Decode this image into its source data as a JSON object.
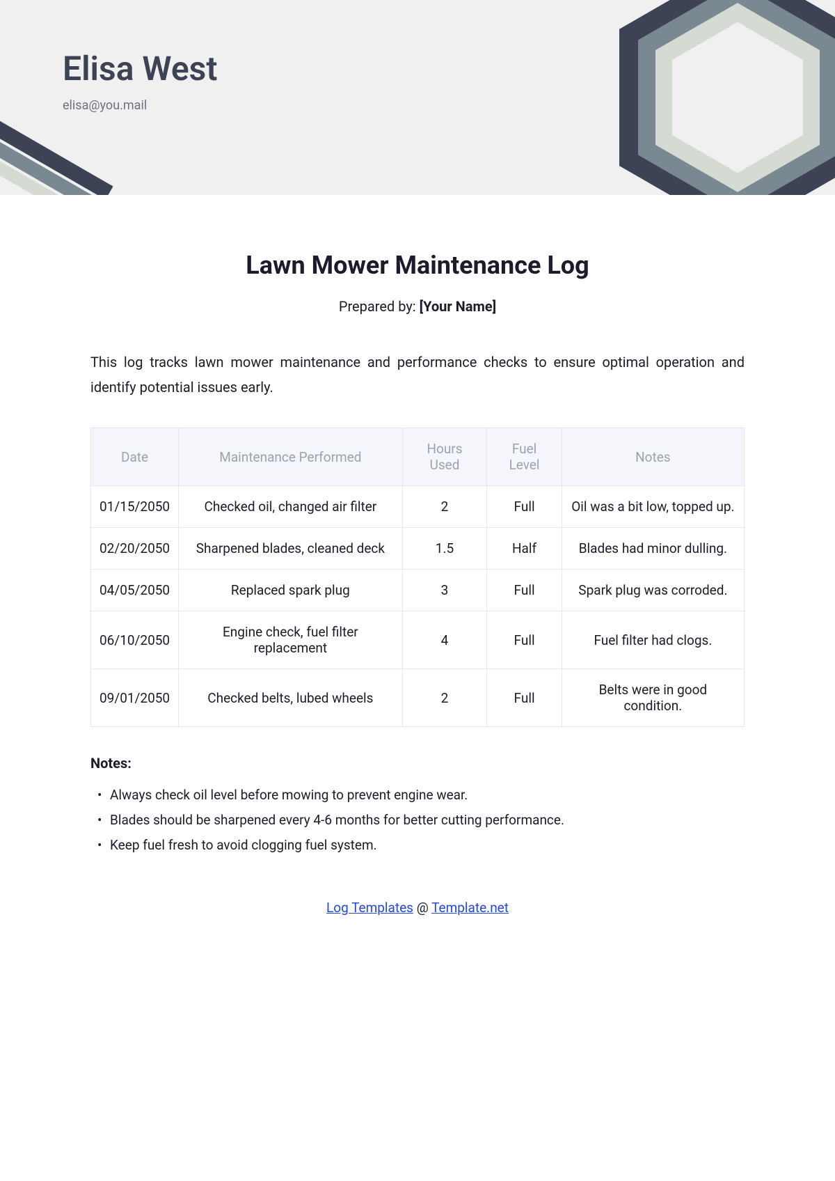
{
  "header": {
    "author_name": "Elisa West",
    "author_email": "elisa@you.mail",
    "bg_color": "#f0f0f0",
    "name_color": "#3d4354",
    "email_color": "#6b7280",
    "deco_colors": {
      "outer": "#3d4354",
      "mid": "#7a8891",
      "inner": "#d5dbd3"
    }
  },
  "document": {
    "title": "Lawn Mower Maintenance Log",
    "prepared_label": "Prepared by: ",
    "prepared_name": "[Your Name]",
    "intro": "This log tracks lawn mower maintenance and performance checks to ensure optimal operation and identify potential issues early."
  },
  "table": {
    "header_bg": "#f4f6fb",
    "header_color": "#9ca3af",
    "border_color": "#e5e7eb",
    "cell_color": "#1a1d29",
    "columns": [
      "Date",
      "Maintenance Performed",
      "Hours Used",
      "Fuel Level",
      "Notes"
    ],
    "rows": [
      [
        "01/15/2050",
        "Checked oil, changed air filter",
        "2",
        "Full",
        "Oil was a bit low, topped up."
      ],
      [
        "02/20/2050",
        "Sharpened blades, cleaned deck",
        "1.5",
        "Half",
        "Blades had minor dulling."
      ],
      [
        "04/05/2050",
        "Replaced spark plug",
        "3",
        "Full",
        "Spark plug was corroded."
      ],
      [
        "06/10/2050",
        "Engine check, fuel filter replacement",
        "4",
        "Full",
        "Fuel filter had clogs."
      ],
      [
        "09/01/2050",
        "Checked belts, lubed wheels",
        "2",
        "Full",
        "Belts were in good condition."
      ]
    ]
  },
  "notes": {
    "heading": "Notes:",
    "items": [
      "Always check oil level before mowing to prevent engine wear.",
      "Blades should be sharpened every 4-6 months for better cutting performance.",
      "Keep fuel fresh to avoid clogging fuel system."
    ]
  },
  "footer": {
    "link1_text": "Log Templates",
    "separator": " @ ",
    "link2_text": "Template.net",
    "link_color": "#2648d8"
  }
}
